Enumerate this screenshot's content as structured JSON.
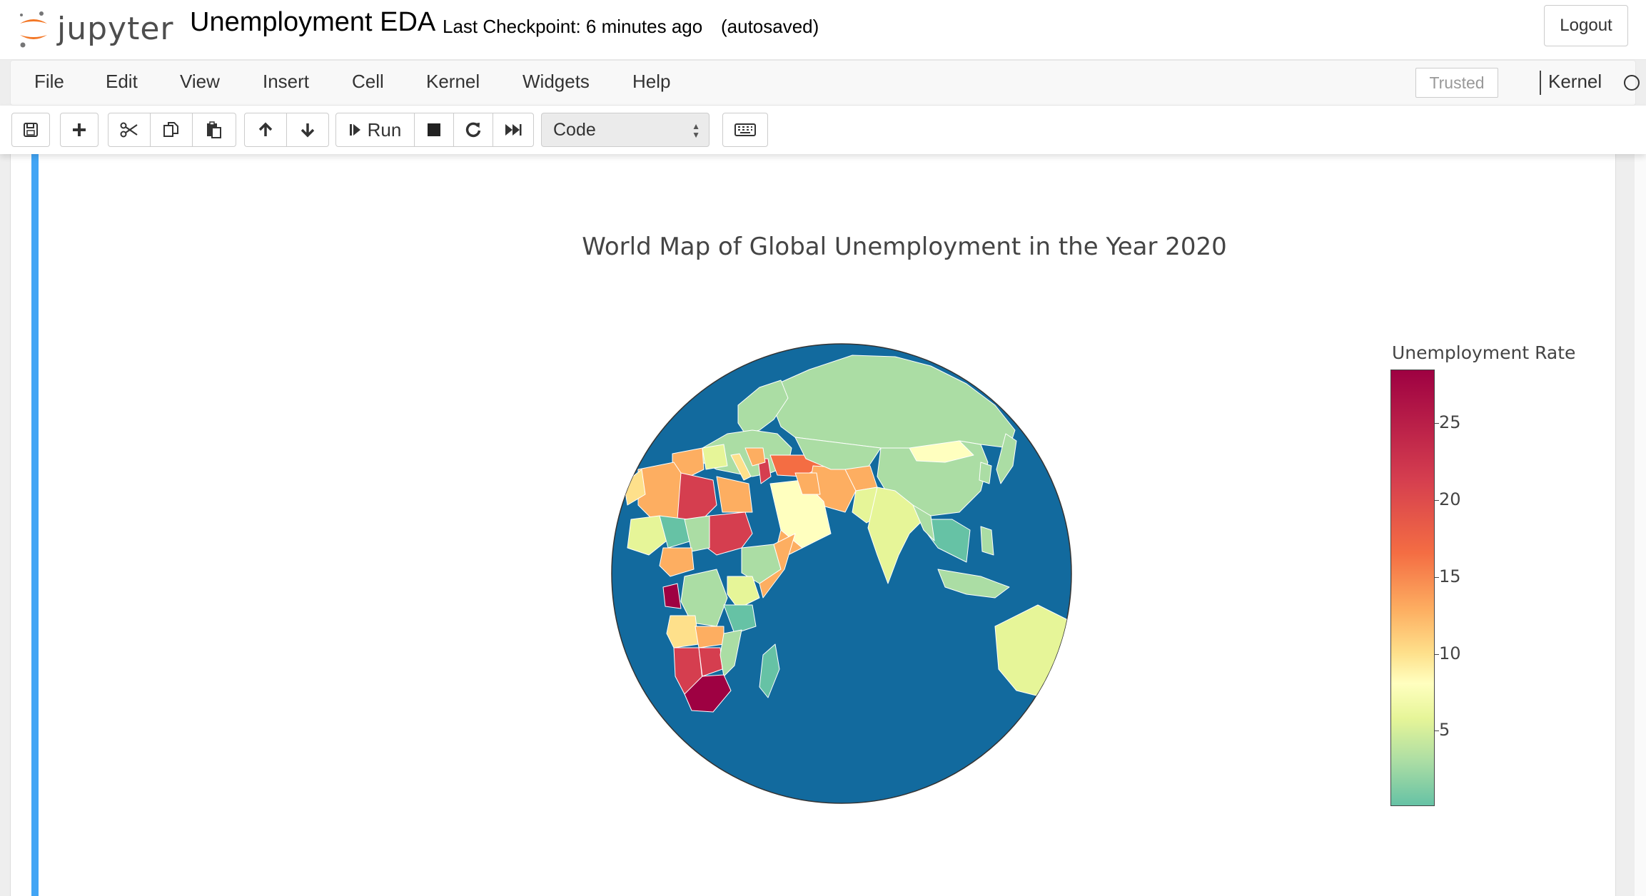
{
  "header": {
    "logo_text": "jupyter",
    "notebook_title": "Unemployment EDA",
    "checkpoint": "Last Checkpoint: 6 minutes ago",
    "autosave": "(autosaved)",
    "logout_label": "Logout"
  },
  "menubar": {
    "items": [
      "File",
      "Edit",
      "View",
      "Insert",
      "Cell",
      "Kernel",
      "Widgets",
      "Help"
    ],
    "trusted_label": "Trusted",
    "kernel_label": "Kernel"
  },
  "toolbar": {
    "run_label": "Run",
    "cell_type": "Code",
    "icons": [
      "save-icon",
      "plus-icon",
      "scissors-icon",
      "copy-icon",
      "paste-icon",
      "arrow-up-icon",
      "arrow-down-icon",
      "run-icon",
      "stop-icon",
      "restart-icon",
      "fast-forward-icon",
      "keyboard-icon"
    ]
  },
  "chart_data": {
    "type": "choropleth",
    "projection": "orthographic",
    "title": "World Map of Global Unemployment in the Year 2020",
    "colorbar": {
      "title": "Unemployment Rate",
      "ticks": [
        25,
        20,
        15,
        10,
        5
      ],
      "range": [
        0.1,
        28.5
      ],
      "colorscale": [
        "#66c2a5",
        "#abdda4",
        "#e6f598",
        "#ffffbf",
        "#fee08b",
        "#fdae61",
        "#f46d43",
        "#d53e4f",
        "#9e0142"
      ]
    },
    "ocean_color": "#126a9e"
  }
}
